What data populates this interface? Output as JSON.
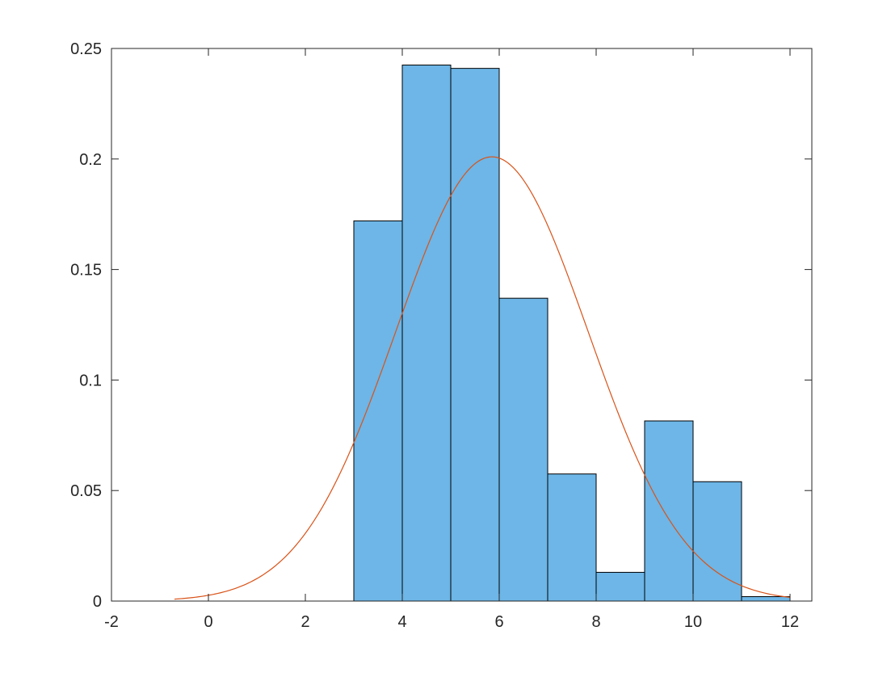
{
  "chart_data": {
    "type": "bar",
    "title": "",
    "xlabel": "",
    "ylabel": "",
    "xlim": [
      -2,
      12.45
    ],
    "ylim": [
      0,
      0.25
    ],
    "grid": false,
    "box": true,
    "xticks": [
      "-2",
      "0",
      "2",
      "4",
      "6",
      "8",
      "10",
      "12"
    ],
    "yticks": [
      "0",
      "0.05",
      "0.1",
      "0.15",
      "0.2",
      "0.25"
    ],
    "bin_edges": [
      3,
      4,
      5,
      6,
      7,
      8,
      9,
      10,
      11,
      12
    ],
    "values": [
      0.172,
      0.2425,
      0.241,
      0.137,
      0.0575,
      0.013,
      0.0815,
      0.054,
      0.002
    ],
    "fit_curve": {
      "kind": "normal_pdf",
      "mean": 5.85,
      "std": 1.985,
      "x_range": [
        -0.7,
        12
      ]
    },
    "colors": {
      "bar_fill": "#6db6e7",
      "bar_edge": "#000000",
      "curve": "#d95319",
      "axis": "#262626"
    }
  }
}
